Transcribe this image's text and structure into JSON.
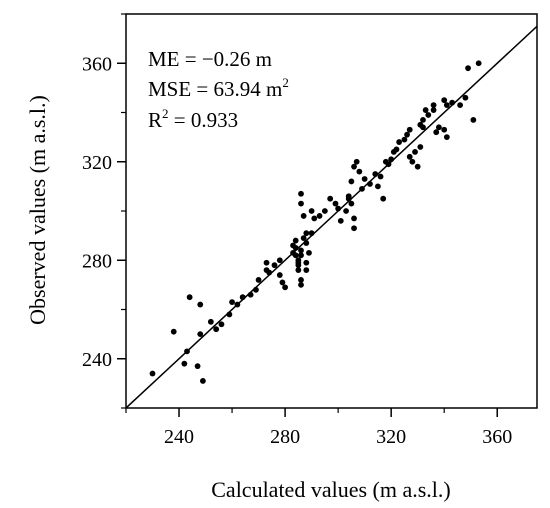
{
  "chart_data": {
    "type": "scatter",
    "xlabel": "Calculated values (m a.s.l.)",
    "ylabel": "Observed values (m a.s.l.)",
    "xlim": [
      220,
      375
    ],
    "ylim": [
      220,
      380
    ],
    "xticks": [
      "240",
      "280",
      "320",
      "360"
    ],
    "yticks": [
      "240",
      "280",
      "320",
      "360"
    ],
    "grid": false,
    "reference_line": "1:1",
    "annotations": {
      "me": "ME = −0.26 m",
      "mse_main": "MSE = 63.94 m",
      "mse_sup": "2",
      "r2_main": "R",
      "r2_sup": "2",
      "r2_rest": " = 0.933"
    },
    "points": [
      [
        230,
        234
      ],
      [
        238,
        251
      ],
      [
        242,
        238
      ],
      [
        243,
        243
      ],
      [
        244,
        265
      ],
      [
        247,
        237
      ],
      [
        248,
        262
      ],
      [
        248,
        250
      ],
      [
        249,
        231
      ],
      [
        252,
        255
      ],
      [
        254,
        252
      ],
      [
        256,
        254
      ],
      [
        259,
        258
      ],
      [
        260,
        263
      ],
      [
        262,
        262
      ],
      [
        264,
        265
      ],
      [
        267,
        266
      ],
      [
        269,
        268
      ],
      [
        270,
        272
      ],
      [
        273,
        279
      ],
      [
        273,
        276
      ],
      [
        274,
        275
      ],
      [
        276,
        278
      ],
      [
        278,
        280
      ],
      [
        278,
        274
      ],
      [
        279,
        271
      ],
      [
        280,
        269
      ],
      [
        283,
        286
      ],
      [
        283,
        283
      ],
      [
        284,
        282
      ],
      [
        284,
        288
      ],
      [
        284,
        285
      ],
      [
        285,
        280
      ],
      [
        285,
        279
      ],
      [
        285,
        278
      ],
      [
        285,
        276
      ],
      [
        286,
        284
      ],
      [
        286,
        282
      ],
      [
        286,
        272
      ],
      [
        286,
        270
      ],
      [
        286,
        303
      ],
      [
        286,
        307
      ],
      [
        287,
        298
      ],
      [
        287,
        289
      ],
      [
        288,
        291
      ],
      [
        288,
        287
      ],
      [
        288,
        279
      ],
      [
        288,
        276
      ],
      [
        289,
        283
      ],
      [
        290,
        291
      ],
      [
        290,
        300
      ],
      [
        291,
        297
      ],
      [
        293,
        298
      ],
      [
        295,
        300
      ],
      [
        297,
        305
      ],
      [
        299,
        303
      ],
      [
        300,
        301
      ],
      [
        301,
        296
      ],
      [
        303,
        300
      ],
      [
        304,
        305
      ],
      [
        304,
        306
      ],
      [
        305,
        303
      ],
      [
        305,
        312
      ],
      [
        306,
        297
      ],
      [
        306,
        293
      ],
      [
        306,
        318
      ],
      [
        307,
        320
      ],
      [
        308,
        316
      ],
      [
        309,
        309
      ],
      [
        310,
        313
      ],
      [
        312,
        311
      ],
      [
        314,
        315
      ],
      [
        315,
        310
      ],
      [
        316,
        314
      ],
      [
        317,
        305
      ],
      [
        318,
        320
      ],
      [
        319,
        319
      ],
      [
        320,
        321
      ],
      [
        321,
        324
      ],
      [
        322,
        325
      ],
      [
        323,
        328
      ],
      [
        325,
        329
      ],
      [
        326,
        331
      ],
      [
        327,
        333
      ],
      [
        327,
        322
      ],
      [
        328,
        320
      ],
      [
        329,
        324
      ],
      [
        330,
        318
      ],
      [
        331,
        326
      ],
      [
        331,
        335
      ],
      [
        332,
        334
      ],
      [
        332,
        337
      ],
      [
        333,
        341
      ],
      [
        334,
        339
      ],
      [
        336,
        341
      ],
      [
        336,
        343
      ],
      [
        337,
        332
      ],
      [
        338,
        334
      ],
      [
        340,
        333
      ],
      [
        340,
        345
      ],
      [
        341,
        343
      ],
      [
        341,
        330
      ],
      [
        343,
        344
      ],
      [
        346,
        343
      ],
      [
        348,
        346
      ],
      [
        349,
        358
      ],
      [
        351,
        337
      ],
      [
        353,
        360
      ]
    ]
  }
}
